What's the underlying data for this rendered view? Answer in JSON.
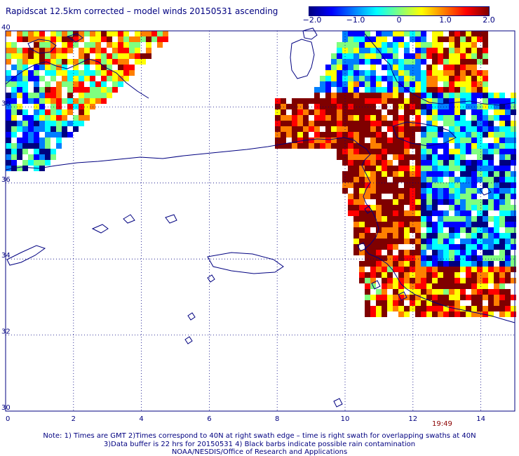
{
  "title": "Rapidscat 12.5km corrected – model winds 20150531 ascending",
  "colorbar": {
    "labels": [
      "−2.0",
      "−1.0",
      "0",
      "1.0",
      "2.0"
    ],
    "values": [
      -2.0,
      -1.0,
      0,
      1.0,
      2.0
    ],
    "colors": [
      "#00007f",
      "#0000ff",
      "#007fff",
      "#00ffff",
      "#7fff7f",
      "#ffff00",
      "#ff7f00",
      "#ff0000",
      "#7f0000"
    ]
  },
  "map": {
    "x_ticks": [
      "0",
      "2",
      "4",
      "6",
      "8",
      "10",
      "12",
      "14"
    ],
    "y_ticks": [
      "40",
      "38",
      "36",
      "34",
      "32",
      "30"
    ],
    "x_range": [
      0,
      15
    ],
    "y_range": [
      30,
      40
    ],
    "grid": "dotted"
  },
  "time_label": "19:49",
  "notes": [
    "Note: 1) Times are GMT 2)Times correspond to 40N at right swath edge – time is right swath for overlapping swaths at 40N",
    "3)Data buffer is 22 hrs for 20150531 4) Black barbs indicate possible rain contamination",
    "NOAA/NESDIS/Office of Research and Applications"
  ]
}
